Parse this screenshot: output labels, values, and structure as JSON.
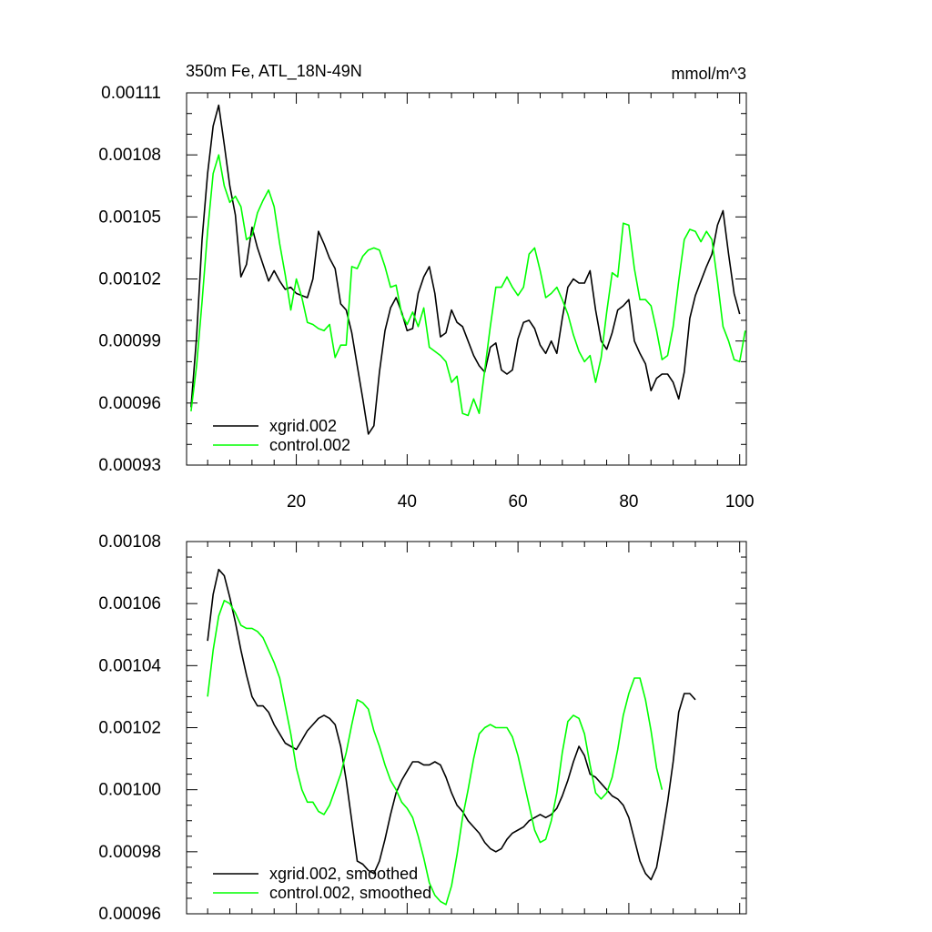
{
  "chart_data": [
    {
      "type": "line",
      "title": "350m Fe, ATL_18N-49N",
      "units": "mmol/m^3",
      "xlabel": "",
      "ylabel": "",
      "xlim": [
        0.2,
        101.2
      ],
      "ylim": [
        0.00093,
        0.00111
      ],
      "yticks": [
        0.00093,
        0.00096,
        0.00099,
        0.00102,
        0.00105,
        0.00108,
        0.00111
      ],
      "ytick_labels": [
        "0.00093",
        "0.00096",
        "0.00099",
        "0.00102",
        "0.00105",
        "0.00108",
        "0.00111"
      ],
      "xticks": [
        20,
        40,
        60,
        80,
        100
      ],
      "xtick_labels": [
        "20",
        "40",
        "60",
        "80",
        "100"
      ],
      "legend_position": "bottom-left",
      "series": [
        {
          "name": "xgrid.002",
          "color": "#000000",
          "x_start": 1,
          "values": [
            0.000958,
            0.000992,
            0.001039,
            0.001071,
            0.001094,
            0.001104,
            0.001085,
            0.001065,
            0.001051,
            0.001021,
            0.001027,
            0.001045,
            0.001035,
            0.001027,
            0.001019,
            0.001024,
            0.001019,
            0.001015,
            0.001016,
            0.001013,
            0.001012,
            0.001011,
            0.00102,
            0.001043,
            0.001037,
            0.00103,
            0.001025,
            0.001008,
            0.001005,
            0.000994,
            0.000978,
            0.000962,
            0.000945,
            0.000949,
            0.000975,
            0.000995,
            0.001006,
            0.001011,
            0.001004,
            0.000995,
            0.000996,
            0.001013,
            0.001021,
            0.001026,
            0.001013,
            0.000992,
            0.000994,
            0.001005,
            0.000999,
            0.000997,
            0.00099,
            0.000983,
            0.000978,
            0.000975,
            0.000987,
            0.000989,
            0.000976,
            0.000974,
            0.000976,
            0.000991,
            0.000999,
            0.001,
            0.000996,
            0.000988,
            0.000984,
            0.00099,
            0.000984,
            0.001001,
            0.001016,
            0.00102,
            0.001018,
            0.001018,
            0.001024,
            0.001005,
            0.00099,
            0.000986,
            0.000994,
            0.001005,
            0.001007,
            0.00101,
            0.00099,
            0.000984,
            0.000979,
            0.000966,
            0.000972,
            0.000974,
            0.000974,
            0.00097,
            0.000962,
            0.000975,
            0.001001,
            0.001012,
            0.001019,
            0.001026,
            0.001032,
            0.001046,
            0.001053,
            0.001032,
            0.001013,
            0.001003
          ]
        },
        {
          "name": "control.002",
          "color": "#00ff00",
          "x_start": 1,
          "values": [
            0.000956,
            0.000978,
            0.001009,
            0.001043,
            0.001071,
            0.00108,
            0.001065,
            0.001057,
            0.00106,
            0.001055,
            0.001039,
            0.001041,
            0.001052,
            0.001058,
            0.001063,
            0.001055,
            0.001037,
            0.001022,
            0.001005,
            0.00102,
            0.001011,
            0.000999,
            0.000998,
            0.000996,
            0.000995,
            0.000998,
            0.000982,
            0.000988,
            0.000988,
            0.001026,
            0.001025,
            0.001031,
            0.001034,
            0.001035,
            0.001034,
            0.001026,
            0.001016,
            0.001017,
            0.001003,
            0.000998,
            0.001004,
            0.000997,
            0.001006,
            0.000987,
            0.000985,
            0.000983,
            0.00098,
            0.00097,
            0.000973,
            0.000955,
            0.000954,
            0.000962,
            0.000955,
            0.000976,
            0.000997,
            0.001016,
            0.001016,
            0.001021,
            0.001016,
            0.001012,
            0.001016,
            0.001032,
            0.001035,
            0.001024,
            0.001011,
            0.001013,
            0.001016,
            0.00101,
            0.001003,
            0.000993,
            0.000985,
            0.00098,
            0.000983,
            0.00097,
            0.000982,
            0.001004,
            0.001023,
            0.001021,
            0.001047,
            0.001046,
            0.001025,
            0.00101,
            0.00101,
            0.001007,
            0.000995,
            0.000981,
            0.000983,
            0.000997,
            0.001019,
            0.001039,
            0.001044,
            0.001043,
            0.001038,
            0.001043,
            0.001039,
            0.001019,
            0.000997,
            0.00099,
            0.000981,
            0.00098,
            0.000995
          ]
        }
      ]
    },
    {
      "type": "line",
      "title": "",
      "xlabel": "",
      "ylabel": "",
      "xlim": [
        0.2,
        101.2
      ],
      "ylim": [
        0.00096,
        0.00108
      ],
      "yticks": [
        0.00096,
        0.00098,
        0.001,
        0.00102,
        0.00104,
        0.00106,
        0.00108
      ],
      "ytick_labels": [
        "0.00096",
        "0.00098",
        "0.00100",
        "0.00102",
        "0.00104",
        "0.00106",
        "0.00108"
      ],
      "xticks": [
        20,
        40,
        60,
        80,
        100
      ],
      "xtick_labels": [],
      "legend_position": "bottom-left",
      "series": [
        {
          "name": "xgrid.002, smoothed",
          "color": "#000000",
          "x_start": 4,
          "values": [
            0.001048,
            0.001063,
            0.001071,
            0.001069,
            0.001062,
            0.001054,
            0.001045,
            0.001037,
            0.00103,
            0.001027,
            0.001027,
            0.001025,
            0.001021,
            0.001018,
            0.001015,
            0.001014,
            0.001013,
            0.001016,
            0.001019,
            0.001021,
            0.001023,
            0.001024,
            0.001023,
            0.001021,
            0.001014,
            0.001003,
            0.00099,
            0.000977,
            0.000976,
            0.000974,
            0.000973,
            0.000977,
            0.000984,
            0.000992,
            0.000999,
            0.001003,
            0.001006,
            0.001009,
            0.001009,
            0.001008,
            0.001008,
            0.001009,
            0.001008,
            0.001004,
            0.000999,
            0.000995,
            0.000993,
            0.00099,
            0.000988,
            0.000986,
            0.000983,
            0.000981,
            0.00098,
            0.000981,
            0.000984,
            0.000986,
            0.000987,
            0.000988,
            0.00099,
            0.000991,
            0.000992,
            0.000991,
            0.000992,
            0.000994,
            0.000998,
            0.001003,
            0.001009,
            0.001014,
            0.001011,
            0.001005,
            0.001004,
            0.001002,
            0.001,
            0.000998,
            0.000997,
            0.000995,
            0.000991,
            0.000984,
            0.000977,
            0.000973,
            0.000971,
            0.000975,
            0.000985,
            0.000996,
            0.001009,
            0.001025,
            0.001031,
            0.001031,
            0.001029
          ]
        },
        {
          "name": "control.002, smoothed",
          "color": "#00ff00",
          "x_start": 4,
          "values": [
            0.00103,
            0.001045,
            0.001056,
            0.001061,
            0.00106,
            0.001057,
            0.001053,
            0.001052,
            0.001052,
            0.001051,
            0.001049,
            0.001045,
            0.001041,
            0.001036,
            0.001027,
            0.001018,
            0.001007,
            0.001,
            0.000996,
            0.000996,
            0.000993,
            0.000992,
            0.000995,
            0.001,
            0.001005,
            0.001012,
            0.001021,
            0.001029,
            0.001028,
            0.001026,
            0.001019,
            0.001014,
            0.001008,
            0.001003,
            0.001,
            0.000996,
            0.000994,
            0.000991,
            0.000985,
            0.000978,
            0.00097,
            0.000966,
            0.000964,
            0.000963,
            0.000969,
            0.000979,
            0.000991,
            0.001,
            0.00101,
            0.001018,
            0.00102,
            0.001021,
            0.00102,
            0.00102,
            0.00102,
            0.001017,
            0.001011,
            0.001003,
            0.000995,
            0.000987,
            0.000983,
            0.000984,
            0.00099,
            0.000999,
            0.001012,
            0.001022,
            0.001024,
            0.001023,
            0.001018,
            0.001008,
            0.000999,
            0.000997,
            0.000999,
            0.001004,
            0.001013,
            0.001024,
            0.001031,
            0.001036,
            0.001036,
            0.001029,
            0.001019,
            0.001007,
            0.001
          ]
        }
      ]
    }
  ]
}
